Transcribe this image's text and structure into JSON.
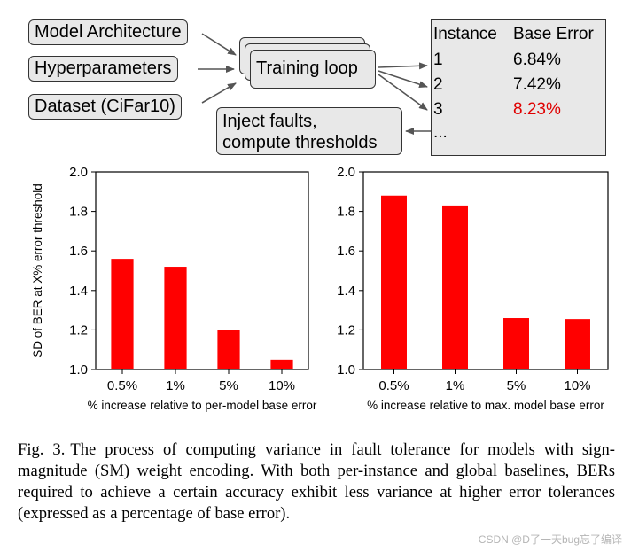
{
  "diagram": {
    "inputs": [
      "Model Architecture",
      "Hyperparameters",
      "Dataset (CiFar10)"
    ],
    "training_loop": "Training loop",
    "inject_line1": "Inject faults,",
    "inject_line2": "compute thresholds",
    "table": {
      "col_instance": "Instance",
      "col_base_error": "Base Error",
      "rows": [
        {
          "instance": "1",
          "error": "6.84%"
        },
        {
          "instance": "2",
          "error": "7.42%"
        },
        {
          "instance": "3",
          "error": "8.23%"
        }
      ],
      "ellipsis": "...",
      "highlight_color": "#e00000"
    }
  },
  "chart_data": [
    {
      "type": "bar",
      "categories": [
        "0.5%",
        "1%",
        "5%",
        "10%"
      ],
      "values": [
        1.56,
        1.52,
        1.2,
        1.05
      ],
      "ylim": [
        1.0,
        2.0
      ],
      "yticks": [
        "1.0",
        "1.2",
        "1.4",
        "1.6",
        "1.8",
        "2.0"
      ],
      "xlabel": "% increase relative to per-model base error",
      "ylabel": "SD of BER at X% error threshold",
      "color": "#ff0000"
    },
    {
      "type": "bar",
      "categories": [
        "0.5%",
        "1%",
        "5%",
        "10%"
      ],
      "values": [
        1.88,
        1.83,
        1.26,
        1.255
      ],
      "ylim": [
        1.0,
        2.0
      ],
      "yticks": [
        "1.0",
        "1.2",
        "1.4",
        "1.6",
        "1.8",
        "2.0"
      ],
      "xlabel": "% increase relative to max. model base error",
      "ylabel": "",
      "color": "#ff0000"
    }
  ],
  "caption": {
    "label": "Fig. 3.",
    "text": "The process of computing variance in fault tolerance for models with sign-magnitude (SM) weight encoding. With both per-instance and global baselines, BERs required to achieve a certain accuracy exhibit less variance at higher error tolerances (expressed as a percentage of base error)."
  },
  "watermark": "CSDN @D了一天bug忘了编译"
}
